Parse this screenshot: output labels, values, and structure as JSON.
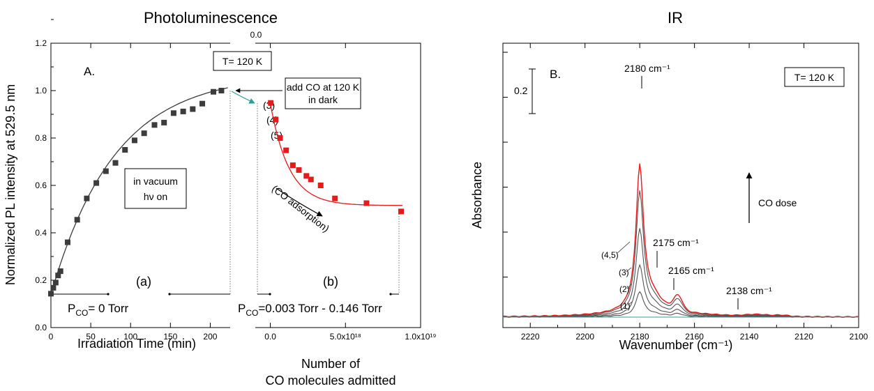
{
  "titles": {
    "left": "Photoluminescence",
    "right": "IR"
  },
  "left": {
    "panel_label": "A.",
    "temp_box": "T= 120 K",
    "add_co_line1": "add CO at 120 K",
    "add_co_line2": "in dark",
    "vacuum_line1": "in vacuum",
    "vacuum_line2": "hν on",
    "region_a": "(a)",
    "region_b": "(b)",
    "p_label_a": {
      "p": "P",
      "sub": "CO",
      "rest": "= 0 Torr"
    },
    "p_label_b": {
      "p": "P",
      "sub": "CO",
      "rest": "=0.003 Torr - 0.146 Torr"
    },
    "co_adsorption": "(CO adsorption)",
    "top_tick": "0.0",
    "ylabel": "Normalized PL intensity at 529.5 nm",
    "xlabel_time": "Irradiation Time (min)",
    "xlabel_mol_1": "Number of",
    "xlabel_mol_2": "CO molecules admitted",
    "point_labels": [
      "(3)",
      "(4)",
      "(5)"
    ]
  },
  "right": {
    "panel_label": "B.",
    "temp_box": "T= 120 K",
    "scale_label": "0.2",
    "ylabel": "Absorbance",
    "xlabel": "Wavenumber (cm⁻¹)",
    "co_dose": "CO dose",
    "peaks": [
      "2180 cm⁻¹",
      "2175 cm⁻¹",
      "2165 cm⁻¹",
      "2138 cm⁻¹"
    ],
    "curve_labels": [
      "(1)",
      "(2)",
      "(3)",
      "(4,5)"
    ]
  },
  "chart_data": [
    {
      "type": "scatter",
      "title": "Photoluminescence",
      "xlabel": "Irradiation Time (min)",
      "ylabel": "Normalized PL intensity at 529.5 nm",
      "xlim": [
        0,
        225
      ],
      "ylim": [
        0,
        1.2
      ],
      "xticks": [
        "0",
        "50",
        "100",
        "150",
        "200"
      ],
      "yticks": [
        "0.0",
        "0.2",
        "0.4",
        "0.6",
        "0.8",
        "1.0",
        "1.2"
      ],
      "series": [
        {
          "color": "#3c3c3c",
          "x": [
            0,
            3,
            6,
            9,
            12,
            21,
            33,
            45,
            57,
            69,
            81,
            93,
            105,
            117,
            130,
            142,
            154,
            166,
            178,
            190,
            204,
            214
          ],
          "y": [
            0.143,
            0.168,
            0.19,
            0.22,
            0.238,
            0.36,
            0.455,
            0.545,
            0.61,
            0.66,
            0.695,
            0.75,
            0.79,
            0.82,
            0.855,
            0.865,
            0.905,
            0.912,
            0.922,
            0.945,
            0.995,
            1.0
          ]
        }
      ]
    },
    {
      "type": "scatter",
      "xlabel": "Number of CO molecules admitted",
      "ylabel": "Normalized PL intensity at 529.5 nm",
      "xlim": [
        -1e+18,
        1e+19
      ],
      "ylim": [
        0,
        1.2
      ],
      "xticks": [
        "0.0",
        "5.0x10¹⁸",
        "1.0x10¹⁹"
      ],
      "series": [
        {
          "color": "#e41a1c",
          "x": [
            3e+16,
            3.5e+17,
            6.5e+17,
            1.05e+18,
            1.5e+18,
            1.9e+18,
            2.4e+18,
            2.7e+18,
            3.35e+18,
            4.3e+18,
            6.4e+18,
            8.7e+18
          ],
          "y": [
            0.948,
            0.878,
            0.8,
            0.748,
            0.685,
            0.665,
            0.64,
            0.625,
            0.6,
            0.545,
            0.525,
            0.49
          ]
        }
      ]
    },
    {
      "type": "line",
      "title": "IR",
      "xlabel": "Wavenumber (cm⁻¹)",
      "ylabel": "Absorbance",
      "xlim": [
        2230,
        2100
      ],
      "xticks": [
        "2220",
        "2200",
        "2180",
        "2160",
        "2140",
        "2120",
        "2100"
      ],
      "scale_bar": 0.2,
      "peaks": [
        2180,
        2175,
        2165,
        2138
      ],
      "series": [
        {
          "name": "(1)",
          "color": "#555555",
          "peak_absorbance": 0.105
        },
        {
          "name": "(2)",
          "color": "#555555",
          "peak_absorbance": 0.215
        },
        {
          "name": "(3)",
          "color": "#555555",
          "peak_absorbance": 0.365
        },
        {
          "name": "",
          "color": "#555555",
          "peak_absorbance": 0.52
        },
        {
          "name": "(4,5)",
          "color": "#e41a1c",
          "peak_absorbance": 0.63
        },
        {
          "name": "",
          "color": "#2aa198",
          "peak_absorbance": 0.0
        }
      ]
    }
  ]
}
